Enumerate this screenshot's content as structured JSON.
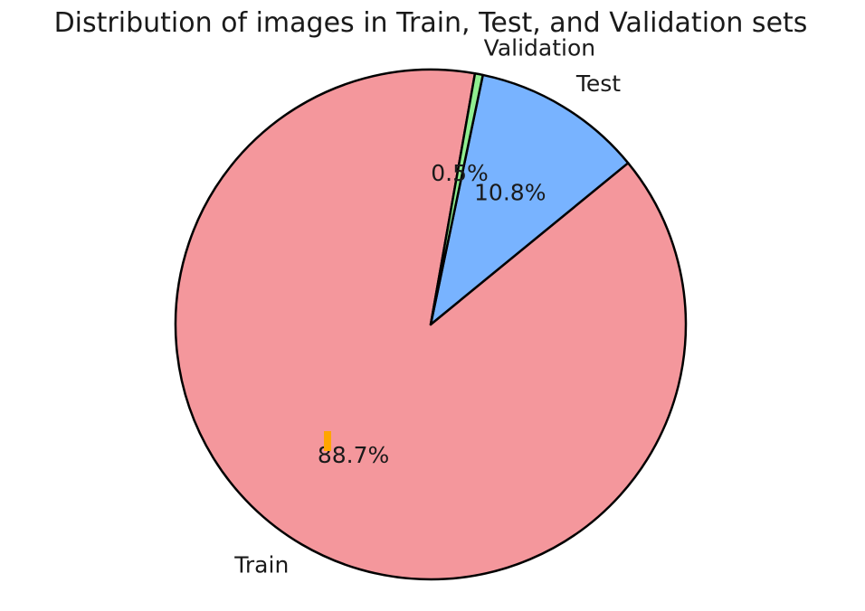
{
  "chart_data": {
    "type": "pie",
    "title": "Distribution of images in Train, Test, and Validation sets",
    "slices": [
      {
        "label": "Train",
        "value": 88.7,
        "pct_label": "88.7%",
        "color": "#f4979c"
      },
      {
        "label": "Test",
        "value": 10.8,
        "pct_label": "10.8%",
        "color": "#78b3ff"
      },
      {
        "label": "Validation",
        "value": 0.5,
        "pct_label": "0.5%",
        "color": "#90ee90"
      }
    ],
    "edge_color": "#000000",
    "marker_color": "#ffa500"
  }
}
